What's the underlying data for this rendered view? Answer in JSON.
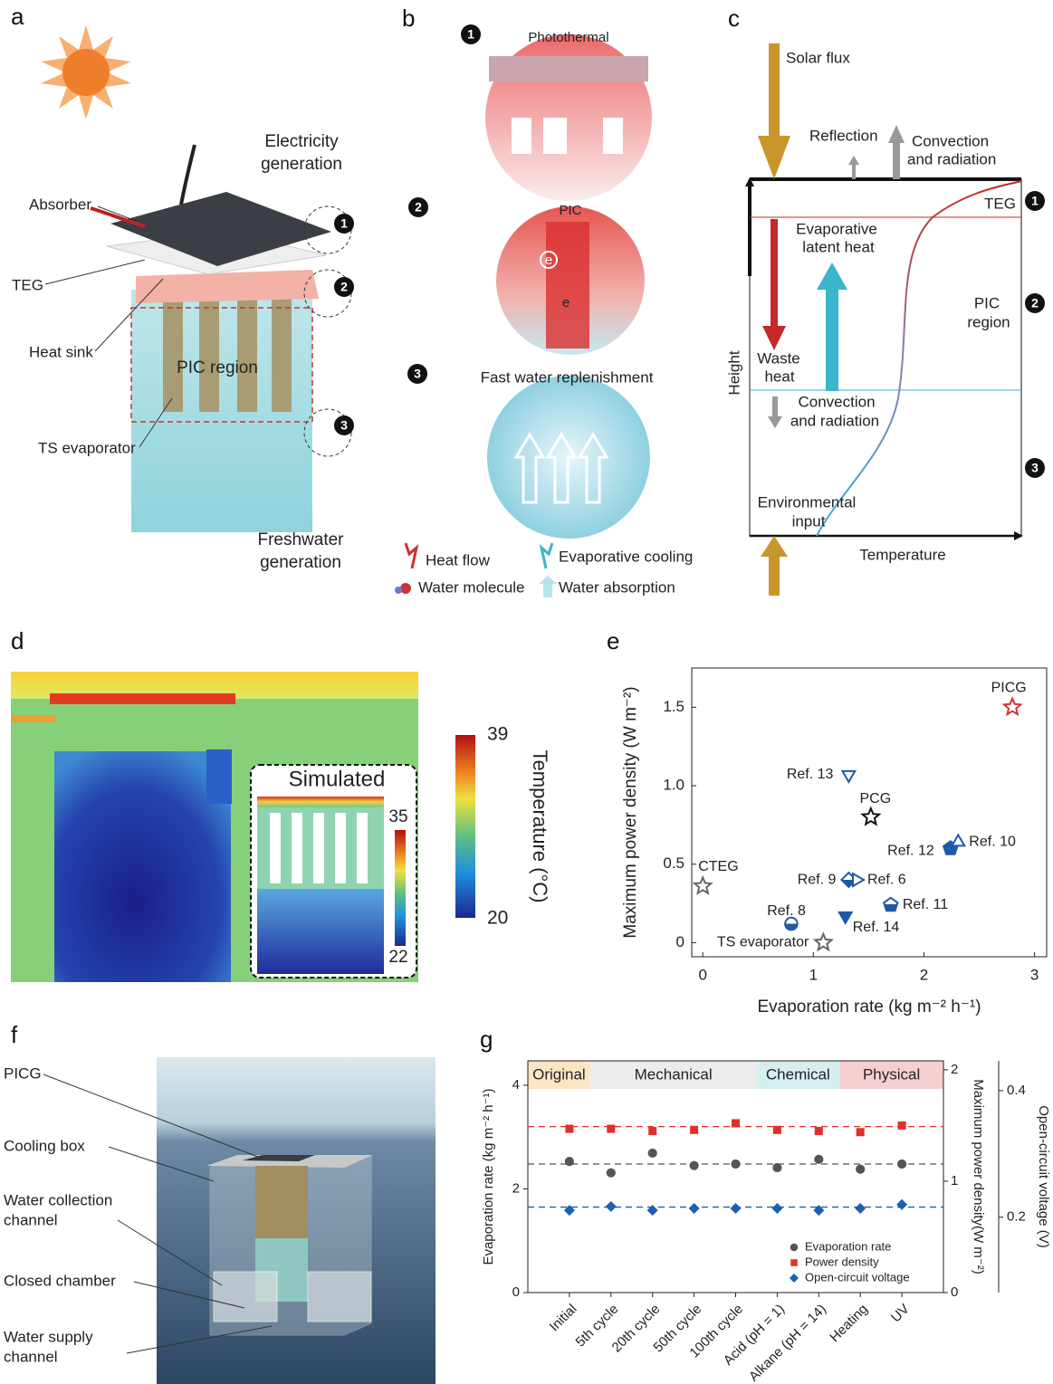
{
  "panel_labels": [
    "a",
    "b",
    "c",
    "d",
    "e",
    "f",
    "g"
  ],
  "panel_a": {
    "title_top": [
      "Electricity",
      "generation"
    ],
    "absorber": "Absorber",
    "teg": "TEG",
    "heat_sink": "Heat sink",
    "pic_region": "PIC region",
    "ts_evaporator": "TS evaporator",
    "title_bottom": [
      "Freshwater",
      "generation"
    ],
    "markers": [
      "1",
      "2",
      "3"
    ]
  },
  "panel_b": {
    "markers": [
      "1",
      "2",
      "3"
    ],
    "photothermal": "Photothermal",
    "pic": "PIC",
    "electrons": [
      "e",
      "e"
    ],
    "replenishment": "Fast water replenishment",
    "legend": [
      "Heat flow",
      "Evaporative cooling",
      "Water molecule",
      "Water absorption"
    ]
  },
  "panel_c": {
    "solar_flux": "Solar flux",
    "reflection": "Reflection",
    "convection_top": [
      "Convection",
      "and radiation"
    ],
    "teg": "TEG",
    "latent_heat": [
      "Evaporative",
      "latent heat"
    ],
    "pic_region": [
      "PIC",
      "region"
    ],
    "waste_heat": [
      "Waste",
      "heat"
    ],
    "y_label": "Height",
    "convection_mid": [
      "Convection",
      "and radiation"
    ],
    "environmental": [
      "Environmental",
      "input"
    ],
    "x_label": "Temperature",
    "markers": [
      "1",
      "2",
      "3"
    ]
  },
  "panel_d": {
    "inset_title": "Simulated",
    "colorbar_ticks": [
      39,
      20
    ],
    "colorbar_label": "Temperature (°C)",
    "inset_ticks": [
      35,
      22
    ]
  },
  "panel_f": {
    "labels": [
      [
        "PICG"
      ],
      [
        "Cooling box"
      ],
      [
        "Water collection",
        "channel"
      ],
      [
        "Closed chamber"
      ],
      [
        "Water supply",
        "channel"
      ]
    ]
  },
  "chart_data": [
    {
      "type": "scatter",
      "x_label": "Evaporation rate (kg m⁻² h⁻¹)",
      "y_label": "Maximum power density (W m⁻²)",
      "xlim": [
        -0.1,
        3.11
      ],
      "ylim": [
        -0.09,
        1.75
      ],
      "xticks": [
        0,
        1,
        2,
        3
      ],
      "yticks": [
        0,
        0.5,
        {
          "value": 1,
          "label": "1.0"
        },
        1.5
      ],
      "series": [
        {
          "name": "PICG",
          "color": "#d0343a",
          "marker": "star",
          "fill": "open",
          "x": [
            2.8
          ],
          "values": [
            1.5
          ]
        },
        {
          "name": "Ref. 13",
          "color": "#1f5aa6",
          "marker": "triangle-down",
          "fill": "open",
          "x": [
            1.32
          ],
          "values": [
            1.07
          ]
        },
        {
          "name": "PCG",
          "color": "#111111",
          "marker": "star",
          "fill": "open",
          "x": [
            1.52
          ],
          "values": [
            0.8
          ]
        },
        {
          "name": "Ref. 12",
          "color": "#1f5aa6",
          "marker": "pentagon",
          "fill": "filled",
          "x": [
            2.24
          ],
          "values": [
            0.6
          ]
        },
        {
          "name": "Ref. 10",
          "color": "#1f5aa6",
          "marker": "triangle-up",
          "fill": "open",
          "x": [
            2.31
          ],
          "values": [
            0.64
          ]
        },
        {
          "name": "CTEG",
          "color": "#666666",
          "marker": "star",
          "fill": "open",
          "x": [
            0
          ],
          "values": [
            0.36
          ]
        },
        {
          "name": "Ref. 9",
          "color": "#1f5aa6",
          "marker": "diamond",
          "fill": "half",
          "x": [
            1.32
          ],
          "values": [
            0.4
          ]
        },
        {
          "name": "Ref. 6",
          "color": "#1f5aa6",
          "marker": "triangle-right",
          "fill": "open",
          "x": [
            1.39
          ],
          "values": [
            0.4
          ]
        },
        {
          "name": "Ref. 8",
          "color": "#1f5aa6",
          "marker": "circle",
          "fill": "half",
          "x": [
            0.8
          ],
          "values": [
            0.12
          ]
        },
        {
          "name": "Ref. 14",
          "color": "#1f5aa6",
          "marker": "triangle-down",
          "fill": "filled",
          "x": [
            1.29
          ],
          "values": [
            0.17
          ]
        },
        {
          "name": "Ref. 11",
          "color": "#1f5aa6",
          "marker": "pentagon",
          "fill": "half",
          "x": [
            1.7
          ],
          "values": [
            0.24
          ]
        },
        {
          "name": "TS evaporator",
          "color": "#666666",
          "marker": "star",
          "fill": "open",
          "x": [
            1.09
          ],
          "values": [
            0
          ]
        }
      ]
    },
    {
      "type": "dot",
      "categories": [
        "Initial",
        "5th cycle",
        "20th cycle",
        "50th cycle",
        "100th cycle",
        "Acid (pH = 1)",
        "Alkane (pH = 14)",
        "Heating",
        "UV"
      ],
      "groups": [
        {
          "name": "Original",
          "color": "#fbe6c4",
          "count": 1
        },
        {
          "name": "Mechanical",
          "color": "#ececec",
          "count": 4
        },
        {
          "name": "Chemical",
          "color": "#d6eef0",
          "count": 2
        },
        {
          "name": "Physical",
          "color": "#f6d0d0",
          "count": 2
        }
      ],
      "y_label": "Evaporation rate (kg m⁻² h⁻¹)",
      "ylim": [
        0,
        4.47
      ],
      "yticks": [
        0,
        2,
        4
      ],
      "y2_label": "Maximum power density(W m⁻²)",
      "y2lim": [
        0,
        2.08
      ],
      "y2ticks": [
        0,
        1,
        2
      ],
      "y3_label": "Open-circuit voltage (V)",
      "y3lim": [
        0.081,
        0.447
      ],
      "y3ticks": [
        0.2,
        0.4
      ],
      "legend": "lower-right",
      "series": [
        {
          "name": "Evaporation rate",
          "color": "#555555",
          "marker": "circle",
          "values": [
            2.53,
            2.31,
            2.69,
            2.45,
            2.48,
            2.41,
            2.57,
            2.38,
            2.48
          ],
          "reference_line": 2.48
        },
        {
          "name": "Power density",
          "color": "#e0302a",
          "marker": "square",
          "axis": "y2",
          "values": [
            1.47,
            1.47,
            1.45,
            1.46,
            1.52,
            1.46,
            1.45,
            1.44,
            1.5
          ],
          "reference_line": 1.49
        },
        {
          "name": "Open-circuit voltage",
          "color": "#1d5fb0",
          "marker": "diamond",
          "axis": "y3",
          "values": [
            0.211,
            0.217,
            0.211,
            0.214,
            0.214,
            0.214,
            0.211,
            0.214,
            0.22
          ],
          "reference_line": 0.216
        }
      ]
    }
  ]
}
